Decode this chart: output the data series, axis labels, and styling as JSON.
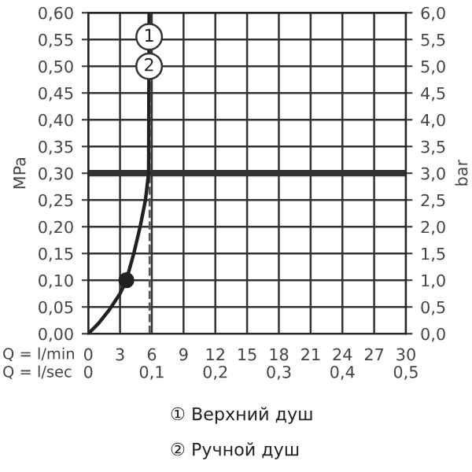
{
  "chart_data": {
    "type": "line",
    "xlabel": "Q = l/min",
    "x2label": "Q = l/sec",
    "ylabel": "MPa",
    "y2label": "bar",
    "xlim": [
      0,
      30
    ],
    "xticks": [
      0,
      3,
      6,
      9,
      12,
      15,
      18,
      21,
      24,
      27,
      30
    ],
    "x2lim": [
      0,
      0.5
    ],
    "x2ticks": [
      0,
      {
        "value": 0.1,
        "label": "0,1"
      },
      {
        "value": 0.2,
        "label": "0,2"
      },
      {
        "value": 0.3,
        "label": "0,3"
      },
      {
        "value": 0.4,
        "label": "0,4"
      },
      {
        "value": 0.5,
        "label": "0,5"
      }
    ],
    "ylim": [
      0,
      0.6
    ],
    "yticks": [
      {
        "value": 0,
        "label": "0,00"
      },
      {
        "value": 0.05,
        "label": "0,05"
      },
      {
        "value": 0.1,
        "label": "0,10"
      },
      {
        "value": 0.15,
        "label": "0,15"
      },
      {
        "value": 0.2,
        "label": "0,20"
      },
      {
        "value": 0.25,
        "label": "0,25"
      },
      {
        "value": 0.3,
        "label": "0,30"
      },
      {
        "value": 0.35,
        "label": "0,35"
      },
      {
        "value": 0.4,
        "label": "0,40"
      },
      {
        "value": 0.45,
        "label": "0,45"
      },
      {
        "value": 0.5,
        "label": "0,50"
      },
      {
        "value": 0.55,
        "label": "0,55"
      },
      {
        "value": 0.6,
        "label": "0,60"
      }
    ],
    "y2lim": [
      0,
      6
    ],
    "y2ticks": [
      {
        "value": 0,
        "label": "0,0"
      },
      {
        "value": 0.5,
        "label": "0,5"
      },
      {
        "value": 1,
        "label": "1,0"
      },
      {
        "value": 1.5,
        "label": "1,5"
      },
      {
        "value": 2,
        "label": "2,0"
      },
      {
        "value": 2.5,
        "label": "2,5"
      },
      {
        "value": 3,
        "label": "3,0"
      },
      {
        "value": 3.5,
        "label": "3,5"
      },
      {
        "value": 4,
        "label": "4,0"
      },
      {
        "value": 4.5,
        "label": "4,5"
      },
      {
        "value": 5,
        "label": "5,0"
      },
      {
        "value": 5.5,
        "label": "5,5"
      },
      {
        "value": 6,
        "label": "6,0"
      }
    ],
    "grid": true,
    "legend": false,
    "series": [
      {
        "color": "#222222",
        "x": [
          0,
          1,
          2,
          3,
          3.6,
          4.3,
          4.9,
          5.4,
          5.7,
          5.75
        ],
        "values": [
          0,
          0.02,
          0.045,
          0.075,
          0.1,
          0.15,
          0.2,
          0.25,
          0.3,
          0.6
        ]
      },
      {
        "type": "scatter",
        "color": "#222222",
        "marker": "circle",
        "x": [
          3.6
        ],
        "values": [
          0.1
        ]
      }
    ],
    "ref_lines": [
      {
        "axis": "y",
        "value": 0.3,
        "color": "#333333",
        "line_style": "solid"
      },
      {
        "axis": "x",
        "value": 5.8,
        "color": "#555555",
        "line_style": "dashed"
      }
    ],
    "annotations": [
      {
        "text": "1",
        "x": 5.75,
        "y": 0.555
      },
      {
        "text": "2",
        "x": 5.75,
        "y": 0.5
      },
      "① Верхний душ",
      "② Ручной душ"
    ]
  }
}
